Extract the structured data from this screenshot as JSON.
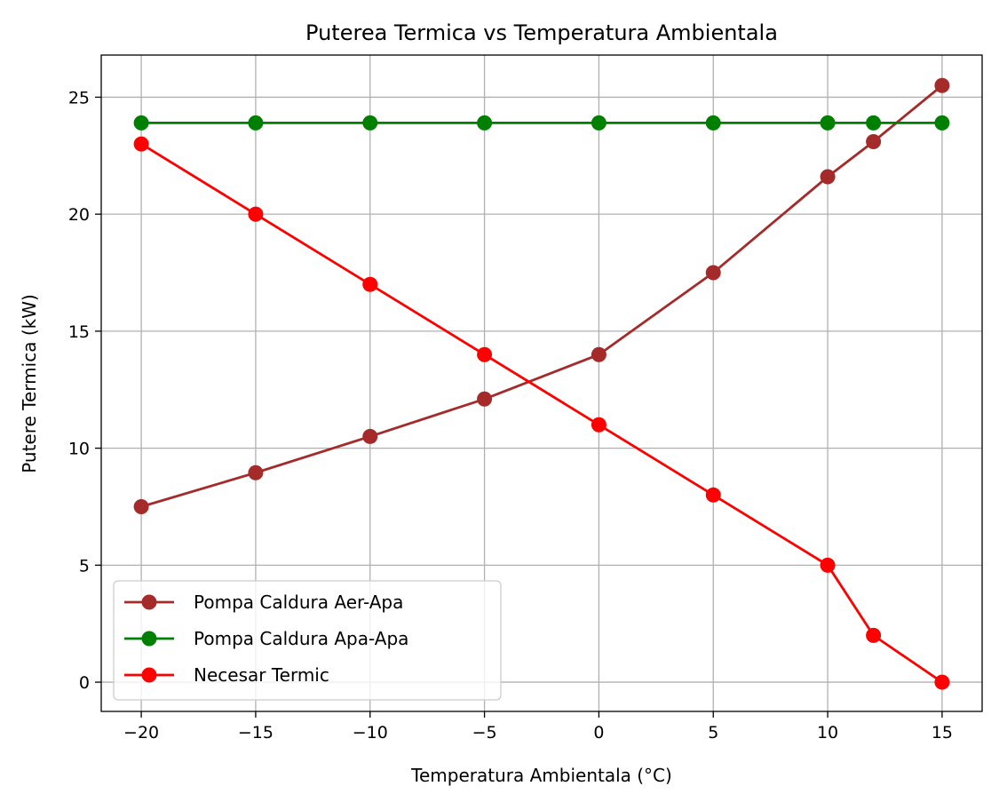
{
  "chart_data": {
    "type": "line",
    "title": "Puterea Termica vs Temperatura Ambientala",
    "xlabel": "Temperatura Ambientala (°C)",
    "ylabel": "Putere Termica (kW)",
    "xlim": [
      -21.75,
      16.75
    ],
    "ylim": [
      -1.25,
      26.8
    ],
    "xticks": [
      -20,
      -15,
      -10,
      -5,
      0,
      5,
      10,
      15
    ],
    "xtick_labels": [
      "−20",
      "−15",
      "−10",
      "−5",
      "0",
      "5",
      "10",
      "15"
    ],
    "yticks": [
      0,
      5,
      10,
      15,
      20,
      25
    ],
    "ytick_labels": [
      "0",
      "5",
      "10",
      "15",
      "20",
      "25"
    ],
    "grid": true,
    "legend_position": "lower-left",
    "x": [
      -20,
      -15,
      -10,
      -5,
      0,
      5,
      10,
      12,
      15
    ],
    "series": [
      {
        "name": "Pompa Caldura Aer-Apa",
        "color": "#a52a2a",
        "marker": "circle",
        "values": [
          7.5,
          8.95,
          10.5,
          12.1,
          14.0,
          17.5,
          21.6,
          23.1,
          25.5
        ]
      },
      {
        "name": "Pompa Caldura Apa-Apa",
        "color": "#008000",
        "marker": "circle",
        "values": [
          23.9,
          23.9,
          23.9,
          23.9,
          23.9,
          23.9,
          23.9,
          23.9,
          23.9
        ]
      },
      {
        "name": "Necesar Termic",
        "color": "#ff0000",
        "marker": "circle",
        "values": [
          23,
          20,
          17,
          14,
          11,
          8,
          5,
          2,
          0
        ]
      }
    ]
  }
}
